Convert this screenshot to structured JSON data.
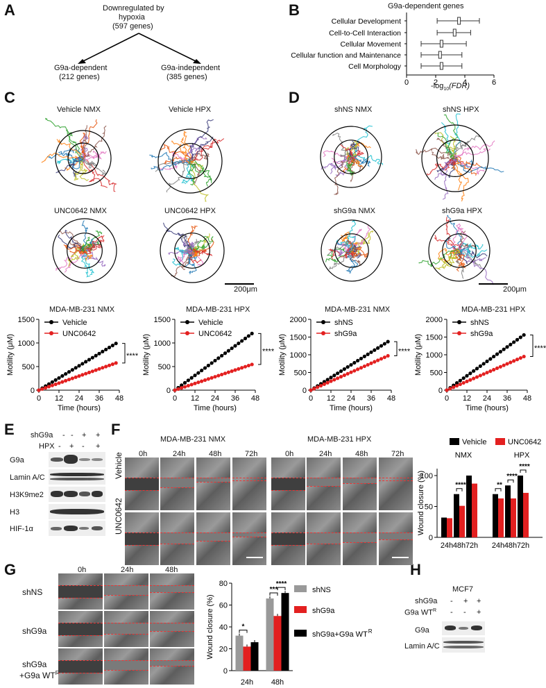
{
  "panels": {
    "A": "A",
    "B": "B",
    "C": "C",
    "D": "D",
    "E": "E",
    "F": "F",
    "G": "G",
    "H": "H"
  },
  "panelA": {
    "root": [
      "Downregulated by",
      "hypoxia",
      "(597 genes)"
    ],
    "left": [
      "G9a-dependent",
      "(212 genes)"
    ],
    "right": [
      "G9a-independent",
      "(385 genes)"
    ]
  },
  "panelB": {
    "title": "G9a-dependent genes",
    "categories": [
      "Cellular Development",
      "Cell-to-Cell Interaction",
      "Cellular Movement",
      "Cellular function and Maintenance",
      "Cell Morphology"
    ],
    "xticks": [
      "0",
      "2",
      "4",
      "6"
    ],
    "xlabel_pre": "-log",
    "xlabel_sub": "10",
    "xlabel_post": "(FDR)"
  },
  "panelC": {
    "titles": [
      "Vehicle NMX",
      "Vehicle HPX",
      "UNC0642 NMX",
      "UNC0642 HPX"
    ],
    "scale": "200μm"
  },
  "panelD": {
    "titles": [
      "shNS NMX",
      "shNS HPX",
      "shG9a NMX",
      "shG9a HPX"
    ],
    "scale": "200μm"
  },
  "motility": {
    "ylabel": "Motility (μM)",
    "xlabel": "Time (hours)",
    "xticks": [
      "0",
      "12",
      "24",
      "36",
      "48"
    ],
    "sig": "****",
    "c1": {
      "title": "MDA-MB-231 NMX",
      "yticks": [
        "0",
        "500",
        "1000",
        "1500"
      ],
      "legend": [
        "Vehicle",
        "UNC0642"
      ]
    },
    "c2": {
      "title": "MDA-MB-231 HPX",
      "yticks": [
        "0",
        "500",
        "1000",
        "1500"
      ],
      "legend": [
        "Vehicle",
        "UNC0642"
      ]
    },
    "d1": {
      "title": "MDA-MB-231 NMX",
      "yticks": [
        "0",
        "500",
        "1000",
        "1500",
        "2000"
      ],
      "legend": [
        "shNS",
        "shG9a"
      ]
    },
    "d2": {
      "title": "MDA-MB-231 HPX",
      "yticks": [
        "0",
        "500",
        "1000",
        "1500",
        "2000"
      ],
      "legend": [
        "shNS",
        "shG9a"
      ]
    }
  },
  "panelE": {
    "header": [
      "shG9a",
      "HPX"
    ],
    "shG9a_row": [
      "-",
      "-",
      "+",
      "+"
    ],
    "hpx_row": [
      "-",
      "+",
      "-",
      "+"
    ],
    "rows": [
      "G9a",
      "Lamin A/C",
      "H3K9me2",
      "H3",
      "HIF-1α"
    ]
  },
  "panelF": {
    "group_titles": [
      "MDA-MB-231 NMX",
      "MDA-MB-231 HPX"
    ],
    "times": [
      "0h",
      "24h",
      "48h",
      "72h"
    ],
    "rows": [
      "Vehicle",
      "UNC0642"
    ]
  },
  "panelFchart": {
    "legend": [
      "Vehicle",
      "UNC0642"
    ],
    "groups": [
      "NMX",
      "HPX"
    ],
    "ylabel": "Wound closure (%)",
    "yticks": [
      "0",
      "50",
      "100"
    ],
    "xcats": [
      "24h",
      "48h",
      "72h",
      "24h",
      "48h",
      "72h"
    ],
    "sig": [
      "****",
      "**",
      "****",
      "****"
    ]
  },
  "panelG": {
    "times": [
      "0h",
      "24h",
      "48h"
    ],
    "rows": [
      "shNS",
      "shG9a",
      "shG9a",
      "+G9a WT"
    ],
    "sup": "R"
  },
  "panelGchart": {
    "legend": [
      "shNS",
      "shG9a",
      "shG9a+G9a WT"
    ],
    "legend_sup": "R",
    "ylabel": "Wound closure (%)",
    "yticks": [
      "0",
      "20",
      "40",
      "60",
      "80"
    ],
    "xcats": [
      "24h",
      "48h"
    ],
    "sig": [
      "*",
      "***",
      "****"
    ]
  },
  "panelH": {
    "title": "MCF7",
    "row1_label": "shG9a",
    "row1": [
      "-",
      "+",
      "+"
    ],
    "row2_label": "G9a WT",
    "row2_sup": "R",
    "row2": [
      "-",
      "-",
      "+"
    ],
    "blots": [
      "G9a",
      "Lamin A/C"
    ]
  },
  "chart_data": [
    {
      "type": "scatter",
      "title": "G9a-dependent genes",
      "categories": [
        "Cellular Development",
        "Cell-to-Cell Interaction",
        "Cellular Movement",
        "Cellular function and Maintenance",
        "Cell Morphology"
      ],
      "median": [
        3.6,
        3.3,
        2.4,
        2.3,
        2.4
      ],
      "low": [
        2.1,
        2.1,
        1.0,
        1.0,
        1.0
      ],
      "high": [
        5.0,
        4.4,
        4.1,
        3.8,
        3.8
      ],
      "xlabel": "-log10(FDR)",
      "xlim": [
        0,
        6
      ]
    },
    {
      "type": "line",
      "title": "MDA-MB-231 NMX",
      "xlabel": "Time (hours)",
      "ylabel": "Motility (μM)",
      "x_max": 46,
      "xlim": [
        0,
        48
      ],
      "ylim": [
        0,
        1500
      ],
      "series": [
        {
          "name": "Vehicle",
          "end": 990,
          "color": "#000000"
        },
        {
          "name": "UNC0642",
          "end": 575,
          "color": "#e32020"
        }
      ]
    },
    {
      "type": "line",
      "title": "MDA-MB-231 HPX",
      "xlabel": "Time (hours)",
      "ylabel": "Motility (μM)",
      "x_max": 46,
      "xlim": [
        0,
        48
      ],
      "ylim": [
        0,
        1500
      ],
      "series": [
        {
          "name": "Vehicle",
          "end": 1200,
          "color": "#000000"
        },
        {
          "name": "UNC0642",
          "end": 545,
          "color": "#e32020"
        }
      ]
    },
    {
      "type": "line",
      "title": "MDA-MB-231 NMX",
      "xlabel": "Time (hours)",
      "ylabel": "Motility (μM)",
      "x_max": 46,
      "xlim": [
        0,
        48
      ],
      "ylim": [
        0,
        2000
      ],
      "series": [
        {
          "name": "shNS",
          "end": 1370,
          "color": "#000000"
        },
        {
          "name": "shG9a",
          "end": 970,
          "color": "#e32020"
        }
      ]
    },
    {
      "type": "line",
      "title": "MDA-MB-231 HPX",
      "xlabel": "Time (hours)",
      "ylabel": "Motility (μM)",
      "x_max": 46,
      "xlim": [
        0,
        48
      ],
      "ylim": [
        0,
        2000
      ],
      "series": [
        {
          "name": "shNS",
          "end": 1560,
          "color": "#000000"
        },
        {
          "name": "shG9a",
          "end": 950,
          "color": "#e32020"
        }
      ]
    },
    {
      "type": "bar",
      "ylabel": "Wound closure (%)",
      "ylim": [
        0,
        110
      ],
      "categories": [
        "NMX 24h",
        "NMX 48h",
        "NMX 72h",
        "HPX 24h",
        "HPX 48h",
        "HPX 72h"
      ],
      "series": [
        {
          "name": "Vehicle",
          "color": "#000000",
          "values": [
            32,
            70,
            100,
            70,
            84,
            100
          ]
        },
        {
          "name": "UNC0642",
          "color": "#e32020",
          "values": [
            31,
            51,
            87,
            63,
            63,
            72
          ]
        }
      ]
    },
    {
      "type": "bar",
      "ylabel": "Wound closure (%)",
      "ylim": [
        0,
        80
      ],
      "categories": [
        "24h",
        "48h"
      ],
      "series": [
        {
          "name": "shNS",
          "color": "#999999",
          "values": [
            32,
            66
          ]
        },
        {
          "name": "shG9a",
          "color": "#e32020",
          "values": [
            22,
            50
          ]
        },
        {
          "name": "shG9a+G9a WT^R",
          "color": "#000000",
          "values": [
            26,
            71
          ]
        }
      ]
    }
  ]
}
